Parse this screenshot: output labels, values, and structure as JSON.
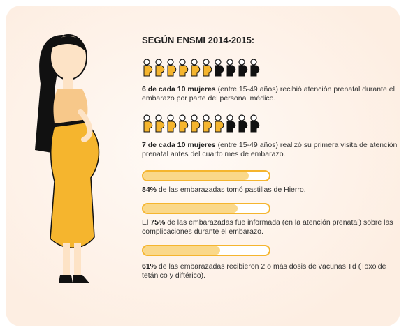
{
  "title": "SEGÚN ENSMI 2014-2015:",
  "pictograms": [
    {
      "filled": 6,
      "total": 10,
      "bold": "6 de cada 10 mujeres",
      "text": " (entre 15-49 años) recibió atención prenatal durante el embarazo por parte del personal médico."
    },
    {
      "filled": 7,
      "total": 10,
      "bold": "7 de cada 10 mujeres",
      "text": " (entre 15-49 años) realizó su primera visita de atención prenatal antes del cuarto mes de embarazo."
    }
  ],
  "bars": [
    {
      "value": 84,
      "value_label": "84%",
      "text": " de las embarazadas tomó pastillas de Hierro."
    },
    {
      "prefix": "El ",
      "value": 75,
      "value_label": "75%",
      "text": " de las embarazadas fue informada (en la atención prenatal) sobre las complicaciones durante el embarazo."
    },
    {
      "value": 61,
      "value_label": "61%",
      "text": " de las embarazadas recibieron 2 o más dosis de vacunas Td (Toxoide tetánico y diftérico)."
    }
  ],
  "range": [
    0,
    100
  ],
  "color": "#f5b52e"
}
